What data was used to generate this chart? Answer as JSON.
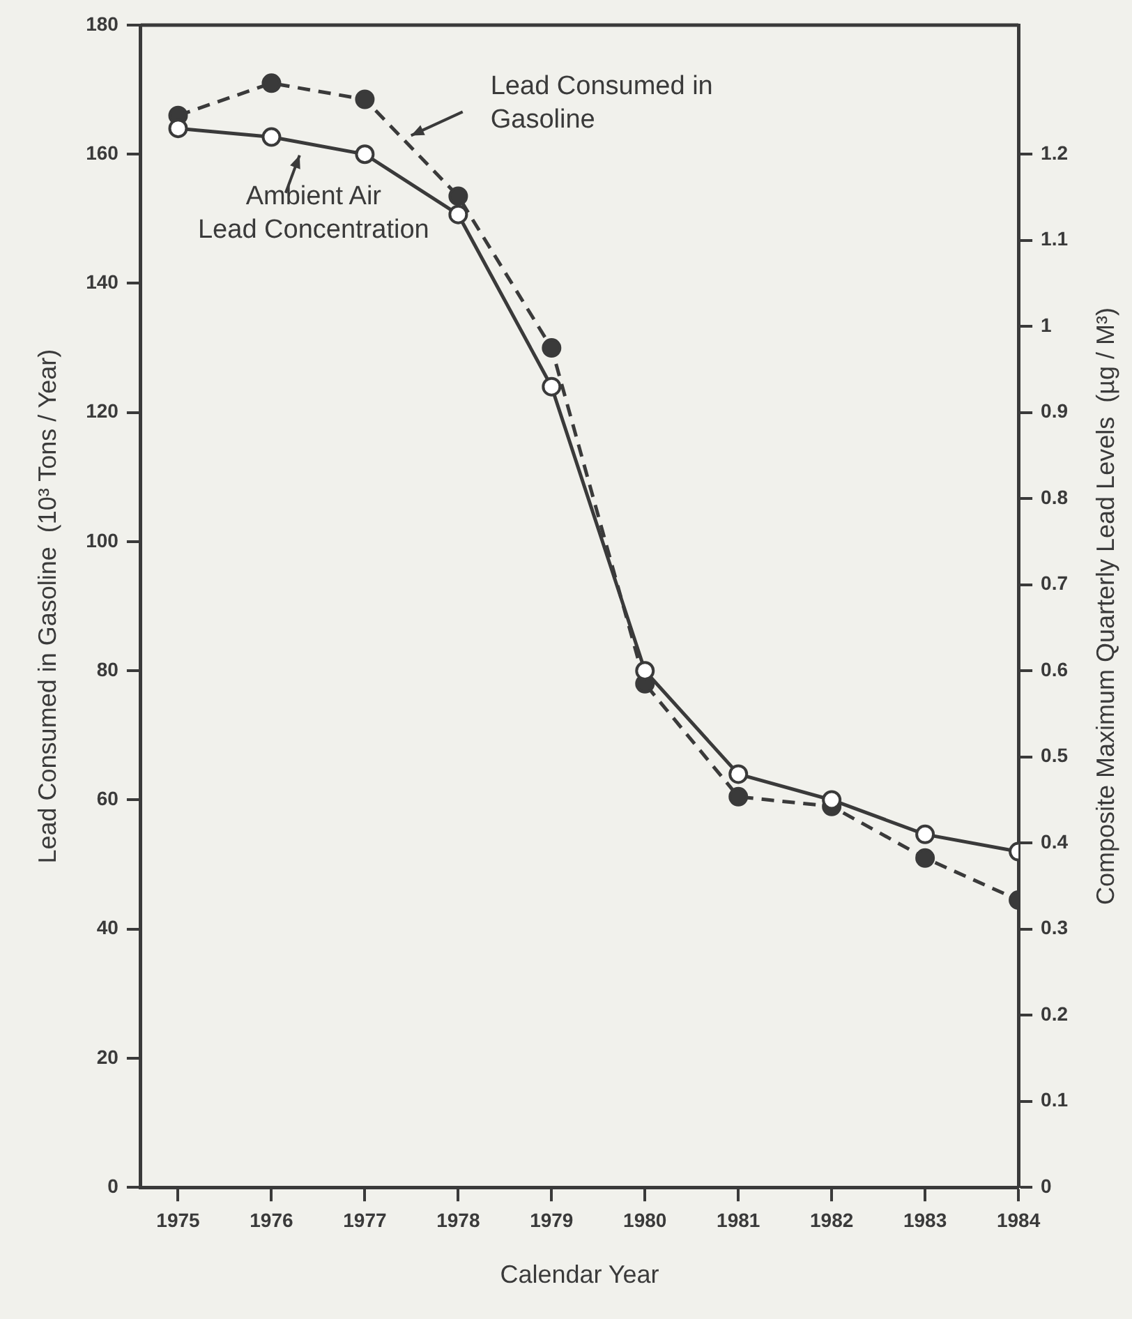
{
  "chart_data": {
    "type": "line",
    "xlabel": "Calendar Year",
    "ylabel": "Lead Consumed in Gasoline  (10³ Tons / Year)",
    "y2label": "Composite Maximum Quarterly Lead Levels  (µg / M³)",
    "x": [
      1975,
      1976,
      1977,
      1978,
      1979,
      1980,
      1981,
      1982,
      1983,
      1984
    ],
    "series": [
      {
        "color": "#3a3a3a",
        "line_style": "dashed",
        "values": [
          166,
          171,
          168.5,
          153.5,
          130,
          78,
          60.5,
          59,
          51,
          44.5
        ]
      },
      {
        "color": "#3a3a3a",
        "line_style": "solid",
        "axis": "y2",
        "values": [
          1.23,
          1.22,
          1.2,
          1.13,
          0.93,
          0.6,
          0.48,
          0.45,
          0.41,
          0.39
        ]
      }
    ],
    "annotations": [
      "Lead Consumed in\nGasoline",
      "Ambient Air\nLead Concentration"
    ],
    "xlim": [
      1974.6,
      1984
    ],
    "xticks": [
      1975,
      1976,
      1977,
      1978,
      1979,
      1980,
      1981,
      1982,
      1983,
      1984
    ],
    "ylim": [
      0,
      180
    ],
    "yticks": [
      0,
      20,
      40,
      60,
      80,
      100,
      120,
      140,
      160,
      180
    ],
    "y2lim": [
      0,
      1.35
    ],
    "y2ticks": [
      0,
      0.1,
      0.2,
      0.3,
      0.4,
      0.5,
      0.6,
      0.7,
      0.8,
      0.9,
      1.0,
      1.1,
      1.2
    ],
    "marker": "circle"
  }
}
